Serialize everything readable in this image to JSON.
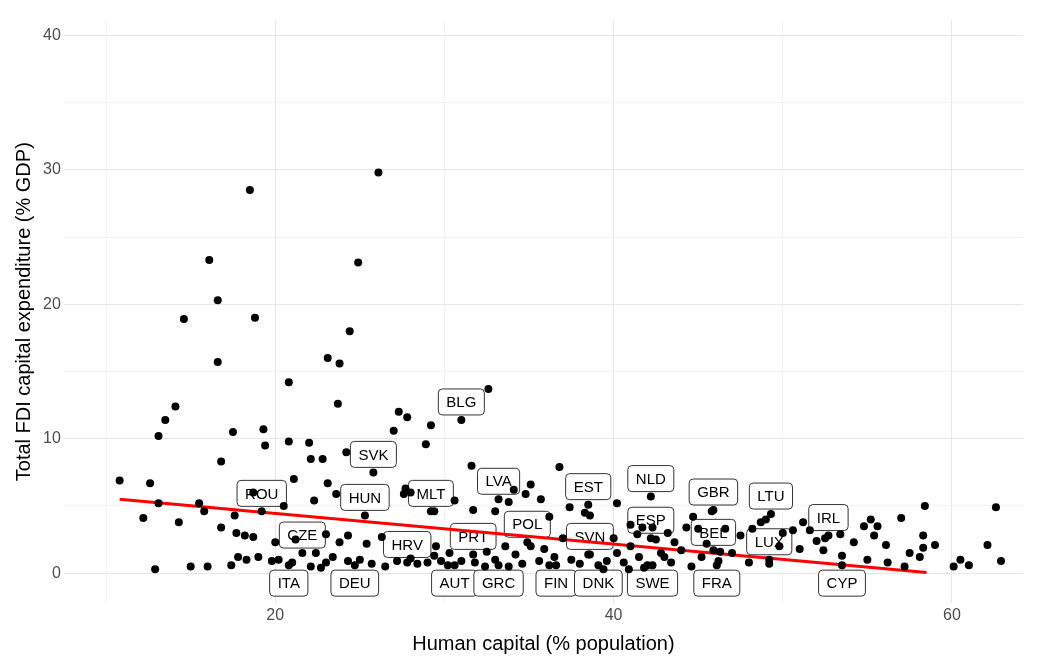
{
  "chart_data": {
    "type": "scatter",
    "xlabel": "Human capital (% population)",
    "ylabel": "Total FDI capital expenditure (% GDP)",
    "xlim": [
      7.5,
      64.2
    ],
    "ylim": [
      -2.2,
      41.1
    ],
    "xticks": [
      {
        "value": 10,
        "label": null
      },
      20,
      {
        "value": 30,
        "label": null
      },
      40,
      {
        "value": 50,
        "label": null
      },
      60
    ],
    "yticks": [
      0,
      {
        "value": 5,
        "label": null
      },
      10,
      {
        "value": 15,
        "label": null
      },
      20,
      {
        "value": 25,
        "label": null
      },
      30,
      {
        "value": 35,
        "label": null
      },
      40
    ],
    "grid": true,
    "legend": false,
    "marker": "circle",
    "series": [
      {
        "color": "#000000",
        "x": [
          18.5,
          26.1,
          16.1,
          24.9,
          16.6,
          18.8,
          14.6,
          24.4,
          16.6,
          23.1,
          23.8,
          20.8,
          23.7,
          32.6,
          14.1,
          13.5,
          13.1,
          17.5,
          19.3,
          19.4,
          20.8,
          22.0,
          22.1,
          22.8,
          16.8,
          27.3,
          27.8,
          27.0,
          29.2,
          28.9,
          24.2,
          21.1,
          27.7,
          31.6,
          36.8,
          18.7,
          23.1,
          10.8,
          12.6,
          12.2,
          13.1,
          14.3,
          15.5,
          15.8,
          17.6,
          12.9,
          15.0,
          16.0,
          17.4,
          16.8,
          17.7,
          18.2,
          18.7,
          19.0,
          17.8,
          18.3,
          19.8,
          20.2,
          21.0,
          22.1,
          22.7,
          23.0,
          23.4,
          24.3,
          25.0,
          25.7,
          26.5,
          27.2,
          28.0,
          28.4,
          29.0,
          29.4,
          20.0,
          21.2,
          22.4,
          23.0,
          23.8,
          24.3,
          25.4,
          26.3,
          29.5,
          30.3,
          32.5,
          33.6,
          34.2,
          35.1,
          35.9,
          36.5,
          20.5,
          22.3,
          23.6,
          27.6,
          28.0,
          29.4,
          30.6,
          31.7,
          33.0,
          33.8,
          34.8,
          35.1,
          35.7,
          34.1,
          36.2,
          37.4,
          38.3,
          38.6,
          40.2,
          41.0,
          41.7,
          42.5,
          43.2,
          44.3,
          44.7,
          45.8,
          46.6,
          47.5,
          48.2,
          48.7,
          49.0,
          50.0,
          50.6,
          51.2,
          51.6,
          52.0,
          52.5,
          53.4,
          54.2,
          54.8,
          55.2,
          55.6,
          55.4,
          56.1,
          57.0,
          57.5,
          58.4,
          58.3,
          58.3,
          58.1,
          59.0,
          60.1,
          60.5,
          61.0,
          62.1,
          62.6,
          62.9,
          56.2,
          55.0,
          57.2,
          53.5,
          52.4,
          51.0,
          49.8,
          49.2,
          48.0,
          47.0,
          46.2,
          45.2,
          44.6,
          44.0,
          43.4,
          42.8,
          42.0,
          41.5,
          41.0,
          40.6,
          40.2,
          39.6,
          38.5,
          38.0,
          37.5,
          37.0,
          36.2,
          35.6,
          34.6,
          33.8,
          33.0,
          32.4,
          31.8,
          31.0,
          30.2,
          29.8,
          40.0,
          41.4,
          42.3,
          43.6,
          45.5,
          46.3,
          43.0,
          41.8,
          40.9,
          39.4,
          45.0,
          31.0,
          25.8,
          19.2,
          25.3,
          29.2,
          33.2,
          38.5,
          42.2,
          45.9,
          49.3,
          52.7,
          34.9,
          31.7,
          38.6,
          42.2,
          45.9,
          49.2,
          21.6,
          27.8,
          20.8,
          24.7,
          30.6,
          33.2,
          36.6,
          39.1,
          42.3,
          46.1,
          53.5
        ],
        "values": [
          28.5,
          29.8,
          23.3,
          23.1,
          20.3,
          19.0,
          18.9,
          18.0,
          15.7,
          16.0,
          15.6,
          14.2,
          12.6,
          13.7,
          12.4,
          11.4,
          10.2,
          10.5,
          10.7,
          9.5,
          9.8,
          9.7,
          8.5,
          8.5,
          8.3,
          12.0,
          11.6,
          10.6,
          11.0,
          9.6,
          9.0,
          7.0,
          6.3,
          8.0,
          7.9,
          6.0,
          6.7,
          6.9,
          6.7,
          4.1,
          5.2,
          3.8,
          5.2,
          4.6,
          4.3,
          0.3,
          0.5,
          0.5,
          0.6,
          3.4,
          3.0,
          2.8,
          2.7,
          1.2,
          1.2,
          1.0,
          0.9,
          1.0,
          0.8,
          0.5,
          0.4,
          0.8,
          1.2,
          0.9,
          1.0,
          0.7,
          0.5,
          0.9,
          1.1,
          0.7,
          0.8,
          1.3,
          2.3,
          2.5,
          1.5,
          2.9,
          2.3,
          2.8,
          2.2,
          2.7,
          2.0,
          1.5,
          1.6,
          2.0,
          1.4,
          2.0,
          1.8,
          1.2,
          5.0,
          5.4,
          5.9,
          5.9,
          6.0,
          4.6,
          5.4,
          4.7,
          4.6,
          5.3,
          5.9,
          6.6,
          5.5,
          6.2,
          4.2,
          4.9,
          4.5,
          4.3,
          5.2,
          3.6,
          3.4,
          2.5,
          3.0,
          3.4,
          4.2,
          4.6,
          3.3,
          2.8,
          3.3,
          3.8,
          4.0,
          3.0,
          3.2,
          3.8,
          3.2,
          2.4,
          2.6,
          2.9,
          2.3,
          3.5,
          4.0,
          3.5,
          2.8,
          2.1,
          4.1,
          1.5,
          5.0,
          2.8,
          1.9,
          1.2,
          2.1,
          0.5,
          1.0,
          0.6,
          2.1,
          4.9,
          0.9,
          0.8,
          1.0,
          0.5,
          1.3,
          1.7,
          1.8,
          2.0,
          0.7,
          0.8,
          1.5,
          0.9,
          1.2,
          0.5,
          1.7,
          0.8,
          1.5,
          0.6,
          1.2,
          2.0,
          0.8,
          1.5,
          0.9,
          1.4,
          0.7,
          1.0,
          2.6,
          0.6,
          0.9,
          0.7,
          0.5,
          1.0,
          0.5,
          0.8,
          0.9,
          0.6,
          0.9,
          2.6,
          2.9,
          3.4,
          2.3,
          2.2,
          1.6,
          1.2,
          0.4,
          0.3,
          0.3,
          3.3,
          11.4,
          7.5,
          4.6,
          4.3,
          4.6,
          5.5,
          5.1,
          5.7,
          4.7,
          4.4,
          2.8,
          2.3,
          1.4,
          1.4,
          2.6,
          1.7,
          1.0,
          1.5,
          0.8,
          0.6,
          0.6,
          0.6,
          0.6,
          0.6,
          0.6,
          0.6,
          0.6,
          0.6
        ]
      },
      {
        "type": "line",
        "color": "#ff0000",
        "marker": "none",
        "x": [
          10.8,
          58.5
        ],
        "values": [
          5.5,
          0.05
        ]
      }
    ],
    "annotations": [
      {
        "text": "BLG",
        "x": 31.0,
        "y": 11.4
      },
      {
        "text": "SVK",
        "x": 25.8,
        "y": 7.5
      },
      {
        "text": "ROU",
        "x": 19.2,
        "y": 4.6
      },
      {
        "text": "HUN",
        "x": 25.3,
        "y": 4.3
      },
      {
        "text": "MLT",
        "x": 29.2,
        "y": 4.6
      },
      {
        "text": "LVA",
        "x": 33.2,
        "y": 5.5
      },
      {
        "text": "EST",
        "x": 38.5,
        "y": 5.1
      },
      {
        "text": "NLD",
        "x": 42.2,
        "y": 5.7
      },
      {
        "text": "GBR",
        "x": 45.9,
        "y": 4.7
      },
      {
        "text": "LTU",
        "x": 49.3,
        "y": 4.4
      },
      {
        "text": "IRL",
        "x": 52.7,
        "y": 2.8
      },
      {
        "text": "POL",
        "x": 34.9,
        "y": 2.3
      },
      {
        "text": "PRT",
        "x": 31.7,
        "y": 1.4
      },
      {
        "text": "SVN",
        "x": 38.6,
        "y": 1.4
      },
      {
        "text": "ESP",
        "x": 42.2,
        "y": 2.6
      },
      {
        "text": "BEL",
        "x": 45.9,
        "y": 1.7
      },
      {
        "text": "LUX",
        "x": 49.2,
        "y": 1.0
      },
      {
        "text": "CZE",
        "x": 21.6,
        "y": 1.5
      },
      {
        "text": "HRV",
        "x": 27.8,
        "y": 0.8
      },
      {
        "text": "ITA",
        "x": 20.8,
        "y": 0.6
      },
      {
        "text": "DEU",
        "x": 24.7,
        "y": 0.6
      },
      {
        "text": "AUT",
        "x": 30.6,
        "y": 0.6
      },
      {
        "text": "GRC",
        "x": 33.2,
        "y": 0.6
      },
      {
        "text": "FIN",
        "x": 36.6,
        "y": 0.6
      },
      {
        "text": "DNK",
        "x": 39.1,
        "y": 0.6
      },
      {
        "text": "SWE",
        "x": 42.3,
        "y": 0.6
      },
      {
        "text": "FRA",
        "x": 46.1,
        "y": 0.6
      },
      {
        "text": "CYP",
        "x": 53.5,
        "y": 0.6
      }
    ]
  }
}
